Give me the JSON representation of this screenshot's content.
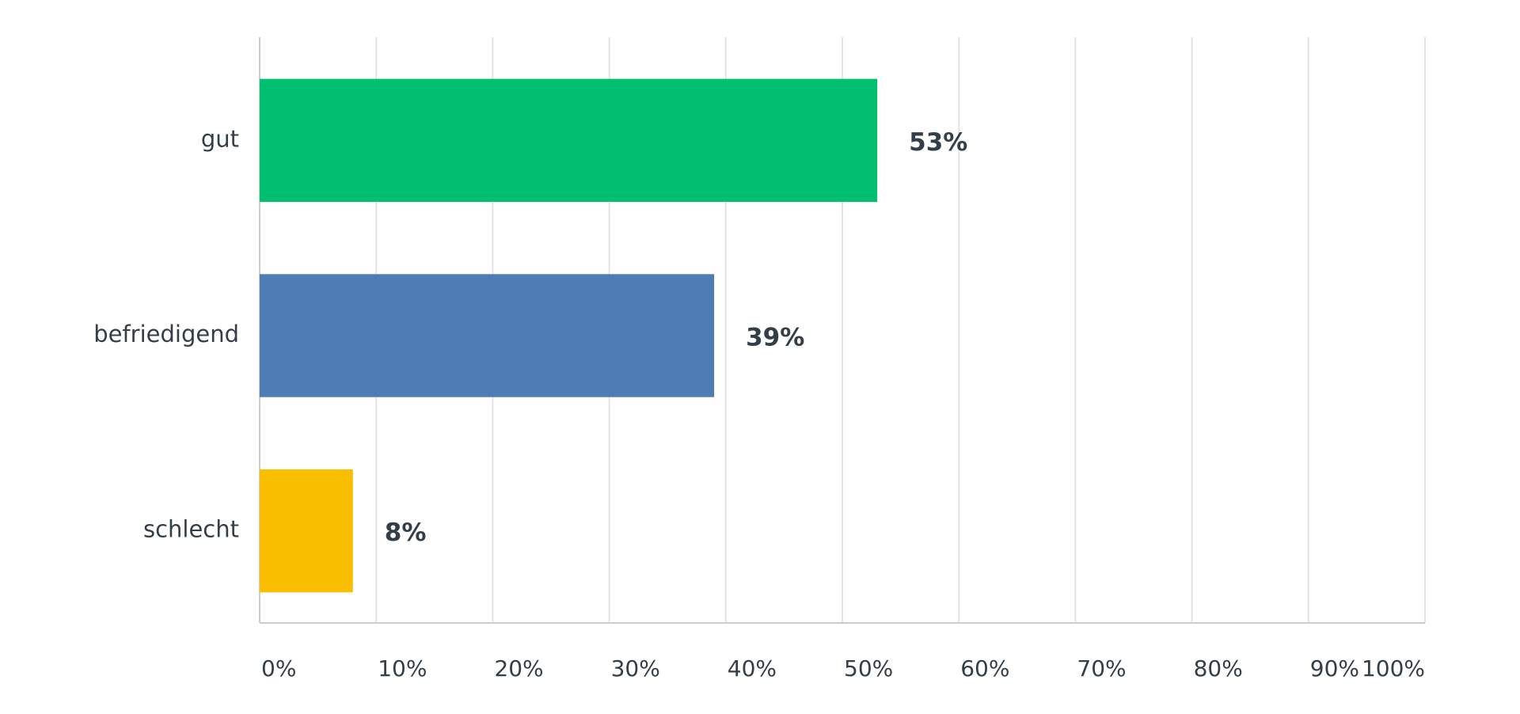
{
  "chart_data": {
    "type": "bar",
    "orientation": "horizontal",
    "categories": [
      "gut",
      "befriedigend",
      "schlecht"
    ],
    "values": [
      53,
      39,
      8
    ],
    "value_labels": [
      "53%",
      "39%",
      "8%"
    ],
    "colors": [
      "#00bf6f",
      "#507cb6",
      "#f9be00"
    ],
    "xlim": [
      0,
      100
    ],
    "xticks": [
      {
        "value": 0,
        "label": "0%"
      },
      {
        "value": 10,
        "label": "10%"
      },
      {
        "value": 20,
        "label": "20%"
      },
      {
        "value": 30,
        "label": "30%"
      },
      {
        "value": 40,
        "label": "40%"
      },
      {
        "value": 50,
        "label": "50%"
      },
      {
        "value": 60,
        "label": "60%"
      },
      {
        "value": 70,
        "label": "70%"
      },
      {
        "value": 80,
        "label": "80%"
      },
      {
        "value": 90,
        "label": "90%"
      },
      {
        "value": 100,
        "label": "100%"
      }
    ],
    "grid": true
  }
}
